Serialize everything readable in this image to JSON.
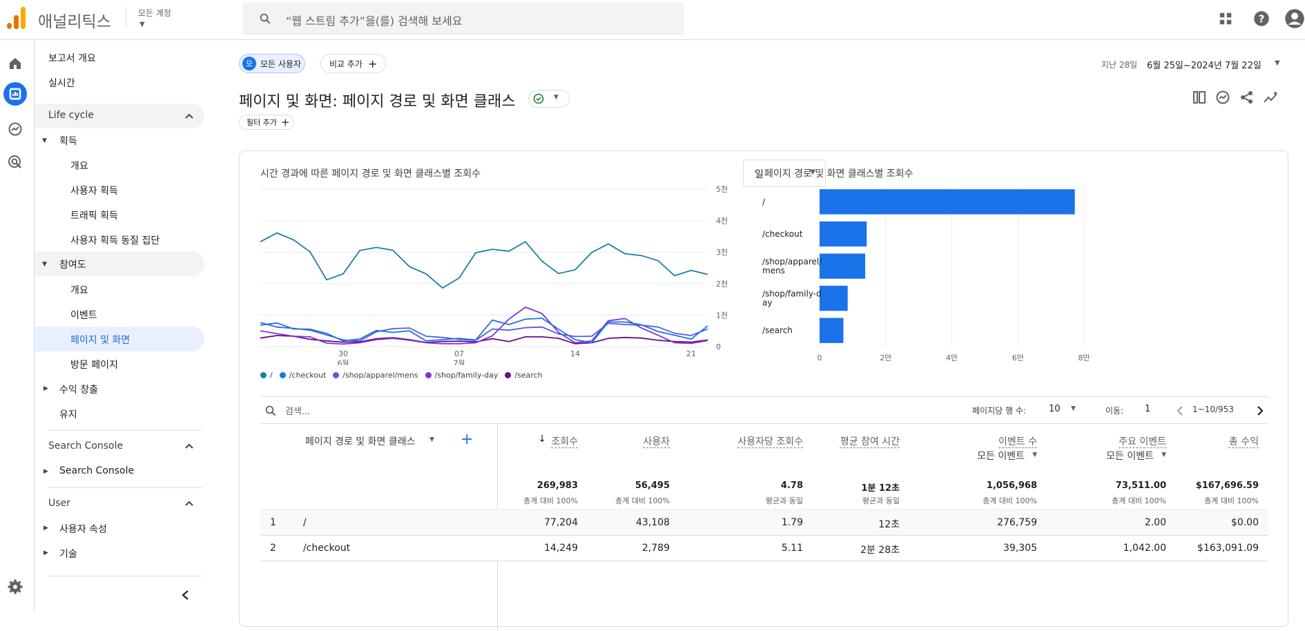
{
  "app": {
    "name": "애널리틱스",
    "account_label": "모든 계정",
    "search_placeholder": "“웹 스트림 추가”을(를) 검색해 보세요"
  },
  "sidebar": {
    "report_overview": "보고서 개요",
    "realtime": "실시간",
    "lifecycle": "Life cycle",
    "acquisition": "획득",
    "acq_overview": "개요",
    "user_acq": "사용자 획득",
    "traffic_acq": "트래픽 획득",
    "user_acq_cohort": "사용자 획득 동질 집단",
    "engagement": "참여도",
    "eng_overview": "개요",
    "events": "이벤트",
    "pages_screens": "페이지 및 화면",
    "landing_page": "방문 페이지",
    "monetization": "수익 창출",
    "retention": "유지",
    "search_console_header": "Search Console",
    "search_console_item": "Search Console",
    "user_header": "User",
    "user_attributes": "사용자 속성",
    "tech": "기술"
  },
  "filters": {
    "all_users": "모든 사용자",
    "all_users_initial": "모",
    "add_comparison": "비교 추가",
    "add_filter": "필터 추가"
  },
  "date": {
    "label": "지난 28일",
    "range": "6월 25일~2024년 7월 22일"
  },
  "page_title": "페이지 및 화면: 페이지 경로 및 화면 클래스",
  "line_chart": {
    "title": "시간 경과에 따른 페이지 경로 및 화면 클래스별 조회수",
    "granularity": "일",
    "y_ticks": [
      "5천",
      "4천",
      "3천",
      "2천",
      "1천",
      "0"
    ],
    "x_ticks": [
      {
        "d": "30",
        "m": "6월"
      },
      {
        "d": "07",
        "m": "7월"
      },
      {
        "d": "14",
        "m": ""
      },
      {
        "d": "21",
        "m": ""
      }
    ]
  },
  "bar_chart": {
    "title": "페이지 경로 및 화면 클래스별 조회수",
    "x_ticks": [
      "0",
      "2만",
      "4만",
      "6만",
      "8만"
    ]
  },
  "legend": [
    "/",
    "/checkout",
    "/shop/apparel/mens",
    "/shop/family-day",
    "/search"
  ],
  "chart_data": [
    {
      "type": "line",
      "title": "시간 경과에 따른 페이지 경로 및 화면 클래스별 조회수",
      "ylim": [
        0,
        5000
      ],
      "x_ticks": [
        "30 6월",
        "07 7월",
        "14",
        "21"
      ],
      "series": [
        {
          "name": "/",
          "color": "#1a7fa0",
          "values": [
            3330,
            3610,
            3390,
            3010,
            2120,
            2310,
            3050,
            3150,
            3060,
            2540,
            2310,
            1860,
            2180,
            2980,
            3090,
            3030,
            3330,
            2710,
            2320,
            2440,
            2990,
            3260,
            2950,
            2890,
            2730,
            2250,
            2420,
            2290
          ]
        },
        {
          "name": "/checkout",
          "color": "#1a73e8",
          "values": [
            680,
            750,
            560,
            550,
            420,
            180,
            240,
            510,
            450,
            500,
            180,
            220,
            260,
            210,
            840,
            700,
            870,
            900,
            550,
            220,
            120,
            780,
            780,
            690,
            480,
            360,
            240,
            660
          ]
        },
        {
          "name": "/shop/apparel/mens",
          "color": "#4b5ce6",
          "values": [
            760,
            620,
            580,
            520,
            370,
            210,
            180,
            470,
            570,
            590,
            330,
            290,
            230,
            200,
            560,
            520,
            600,
            620,
            400,
            320,
            330,
            740,
            700,
            680,
            620,
            420,
            350,
            560
          ]
        },
        {
          "name": "/shop/family-day",
          "color": "#8430ce",
          "values": [
            500,
            410,
            330,
            310,
            110,
            80,
            120,
            220,
            260,
            200,
            120,
            90,
            90,
            120,
            340,
            870,
            1250,
            1050,
            450,
            120,
            180,
            820,
            890,
            590,
            360,
            120,
            100,
            190
          ]
        },
        {
          "name": "/search",
          "color": "#6a0a8c",
          "values": [
            270,
            350,
            330,
            230,
            180,
            140,
            150,
            250,
            280,
            220,
            130,
            160,
            170,
            150,
            250,
            160,
            310,
            310,
            260,
            90,
            120,
            260,
            290,
            270,
            200,
            160,
            140,
            210
          ]
        }
      ]
    },
    {
      "type": "bar",
      "title": "페이지 경로 및 화면 클래스별 조회수",
      "categories": [
        "/",
        "/checkout",
        "/shop/apparel/mens",
        "/shop/family-day",
        "/search"
      ],
      "category_lines": [
        [
          "/"
        ],
        [
          "/checkout"
        ],
        [
          "/shop/apparel/",
          "mens"
        ],
        [
          "/shop/family-d",
          "ay"
        ],
        [
          "/search"
        ]
      ],
      "values": [
        77204,
        14249,
        13800,
        8500,
        7200
      ],
      "xlim": [
        0,
        80000
      ],
      "x_ticks": [
        0,
        20000,
        40000,
        60000,
        80000
      ],
      "color": "#1a73e8"
    }
  ],
  "table": {
    "search_placeholder": "검색...",
    "rows_per_page_label": "페이지당 행 수:",
    "rows_per_page": "10",
    "goto_label": "이동:",
    "goto_value": "1",
    "range": "1~10/953",
    "dimension_header": "페이지 경로 및 화면 클래스",
    "columns": [
      {
        "label": "조회수",
        "sub": "",
        "total": "269,983",
        "total_sub": "총계 대비 100%"
      },
      {
        "label": "사용자",
        "sub": "",
        "total": "56,495",
        "total_sub": "총계 대비 100%"
      },
      {
        "label": "사용자당 조회수",
        "sub": "",
        "total": "4.78",
        "total_sub": "평균과 동일"
      },
      {
        "label": "평균 참여 시간",
        "sub": "",
        "total": "1분 12초",
        "total_sub": "평균과 동일"
      },
      {
        "label": "이벤트 수",
        "sub": "모든 이벤트",
        "total": "1,056,968",
        "total_sub": "총계 대비 100%"
      },
      {
        "label": "주요 이벤트",
        "sub": "모든 이벤트",
        "total": "73,511.00",
        "total_sub": "총계 대비 100%"
      },
      {
        "label": "총 수익",
        "sub": "",
        "total": "$167,696.59",
        "total_sub": "총계 대비 100%"
      }
    ],
    "rows": [
      {
        "idx": "1",
        "path": "/",
        "vals": [
          "77,204",
          "43,108",
          "1.79",
          "12초",
          "276,759",
          "2.00",
          "$0.00"
        ]
      },
      {
        "idx": "2",
        "path": "/checkout",
        "vals": [
          "14,249",
          "2,789",
          "5.11",
          "2분 28초",
          "39,305",
          "1,042.00",
          "$163,091.09"
        ]
      }
    ]
  }
}
